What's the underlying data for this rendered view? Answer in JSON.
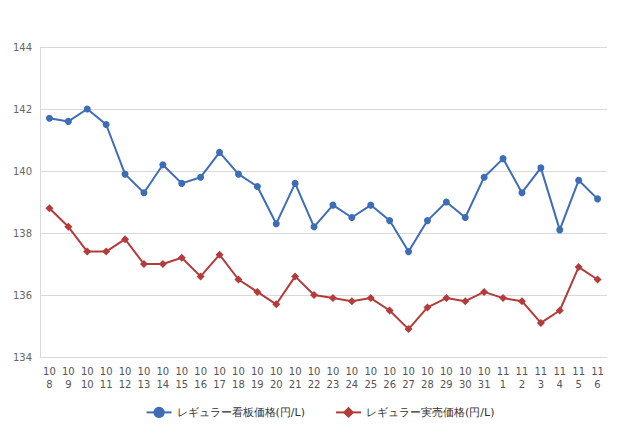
{
  "chart_data": {
    "type": "line",
    "categories": [
      "10\n8",
      "10\n9",
      "10\n10",
      "10\n11",
      "10\n12",
      "10\n13",
      "10\n14",
      "10\n15",
      "10\n16",
      "10\n17",
      "10\n18",
      "10\n19",
      "10\n20",
      "10\n21",
      "10\n22",
      "10\n23",
      "10\n24",
      "10\n25",
      "10\n26",
      "10\n27",
      "10\n28",
      "10\n29",
      "10\n30",
      "10\n31",
      "11\n1",
      "11\n2",
      "11\n3",
      "11\n4",
      "11\n5",
      "11\n6"
    ],
    "series": [
      {
        "name": "レギュラー看板価格(円/L)",
        "color": "#3d6db5",
        "marker": "circle",
        "values": [
          141.7,
          141.6,
          142.0,
          141.5,
          139.9,
          139.3,
          140.2,
          139.6,
          139.8,
          140.6,
          139.9,
          139.5,
          138.3,
          139.6,
          138.2,
          138.9,
          138.5,
          138.9,
          138.4,
          137.4,
          138.4,
          139.0,
          138.5,
          139.8,
          140.4,
          139.3,
          140.1,
          138.1,
          139.7,
          139.1
        ]
      },
      {
        "name": "レギュラー実売価格(円/L)",
        "color": "#b33b3b",
        "marker": "diamond",
        "values": [
          138.8,
          138.2,
          137.4,
          137.4,
          137.8,
          137.0,
          137.0,
          137.2,
          136.6,
          137.3,
          136.5,
          136.1,
          135.7,
          136.6,
          136.0,
          135.9,
          135.8,
          135.9,
          135.5,
          134.9,
          135.6,
          135.9,
          135.8,
          136.1,
          135.9,
          135.8,
          135.1,
          135.5,
          136.9,
          136.5
        ]
      }
    ],
    "ylim": [
      134,
      144
    ],
    "yticks": [
      134,
      136,
      138,
      140,
      142,
      144
    ],
    "grid": true,
    "legend": "bottom"
  }
}
